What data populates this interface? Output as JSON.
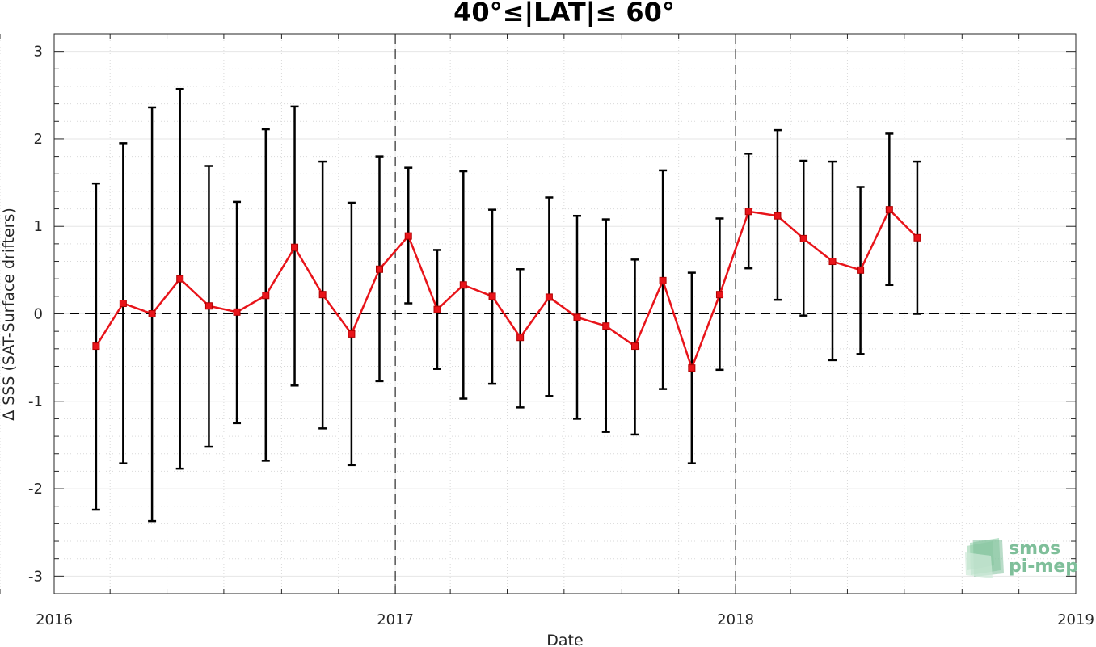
{
  "chart_data": {
    "type": "line",
    "title": "40°≤|LAT|≤ 60°",
    "xlabel": "Date",
    "ylabel": "Δ SSS (SAT-Surface drifters)",
    "xlim": [
      "2016-01-01",
      "2019-01-01"
    ],
    "ylim": [
      -3.2,
      3.2
    ],
    "x_ticks": [
      "2016-01-01",
      "2017-01-01",
      "2018-01-01",
      "2019-01-01"
    ],
    "x_tick_labels": [
      "2016",
      "2017",
      "2018",
      "2019"
    ],
    "y_ticks": [
      -3,
      -2,
      -1,
      0,
      1,
      2,
      3
    ],
    "y_tick_labels": [
      "-3",
      "-2",
      "-1",
      "0",
      "1",
      "2",
      "3"
    ],
    "grid": true,
    "reference_line_y": 0,
    "year_boundary_lines": [
      "2017-01-01",
      "2018-01-01"
    ],
    "series": [
      {
        "color": "#e8141a",
        "error_bar_color": "#000000",
        "x": [
          "2016-02-15",
          "2016-03-15",
          "2016-04-15",
          "2016-05-15",
          "2016-06-15",
          "2016-07-15",
          "2016-08-15",
          "2016-09-15",
          "2016-10-15",
          "2016-11-15",
          "2016-12-15",
          "2017-01-15",
          "2017-02-15",
          "2017-03-15",
          "2017-04-15",
          "2017-05-15",
          "2017-06-15",
          "2017-07-15",
          "2017-08-15",
          "2017-09-15",
          "2017-10-15",
          "2017-11-15",
          "2017-12-15",
          "2018-01-15",
          "2018-02-15",
          "2018-03-15",
          "2018-04-15",
          "2018-05-15",
          "2018-06-15",
          "2018-07-15"
        ],
        "y": [
          -0.37,
          0.12,
          0.0,
          0.4,
          0.09,
          0.02,
          0.21,
          0.76,
          0.22,
          -0.23,
          0.51,
          0.89,
          0.05,
          0.33,
          0.2,
          -0.27,
          0.19,
          -0.04,
          -0.14,
          -0.37,
          0.38,
          -0.62,
          0.22,
          1.17,
          1.12,
          0.86,
          0.6,
          0.5,
          1.19,
          0.87
        ],
        "err_low": [
          -2.24,
          -1.71,
          -2.37,
          -1.77,
          -1.52,
          -1.25,
          -1.68,
          -0.82,
          -1.31,
          -1.73,
          -0.77,
          0.12,
          -0.63,
          -0.97,
          -0.8,
          -1.07,
          -0.94,
          -1.2,
          -1.35,
          -1.38,
          -0.86,
          -1.71,
          -0.64,
          0.52,
          0.16,
          -0.02,
          -0.53,
          -0.46,
          0.33,
          0.0
        ],
        "err_high": [
          1.49,
          1.95,
          2.36,
          2.57,
          1.69,
          1.28,
          2.11,
          2.37,
          1.74,
          1.27,
          1.8,
          1.67,
          0.73,
          1.63,
          1.19,
          0.51,
          1.33,
          1.12,
          1.08,
          0.62,
          1.64,
          0.47,
          1.09,
          1.83,
          2.1,
          1.75,
          1.74,
          1.45,
          2.06,
          1.74
        ]
      }
    ]
  },
  "logo": {
    "line1": "smos",
    "line2": "pi-mep",
    "colors": [
      "#8fcfa8",
      "#7fbf9a",
      "#b7dfc6"
    ],
    "icon": "smos-pi-mep-logo-icon"
  }
}
